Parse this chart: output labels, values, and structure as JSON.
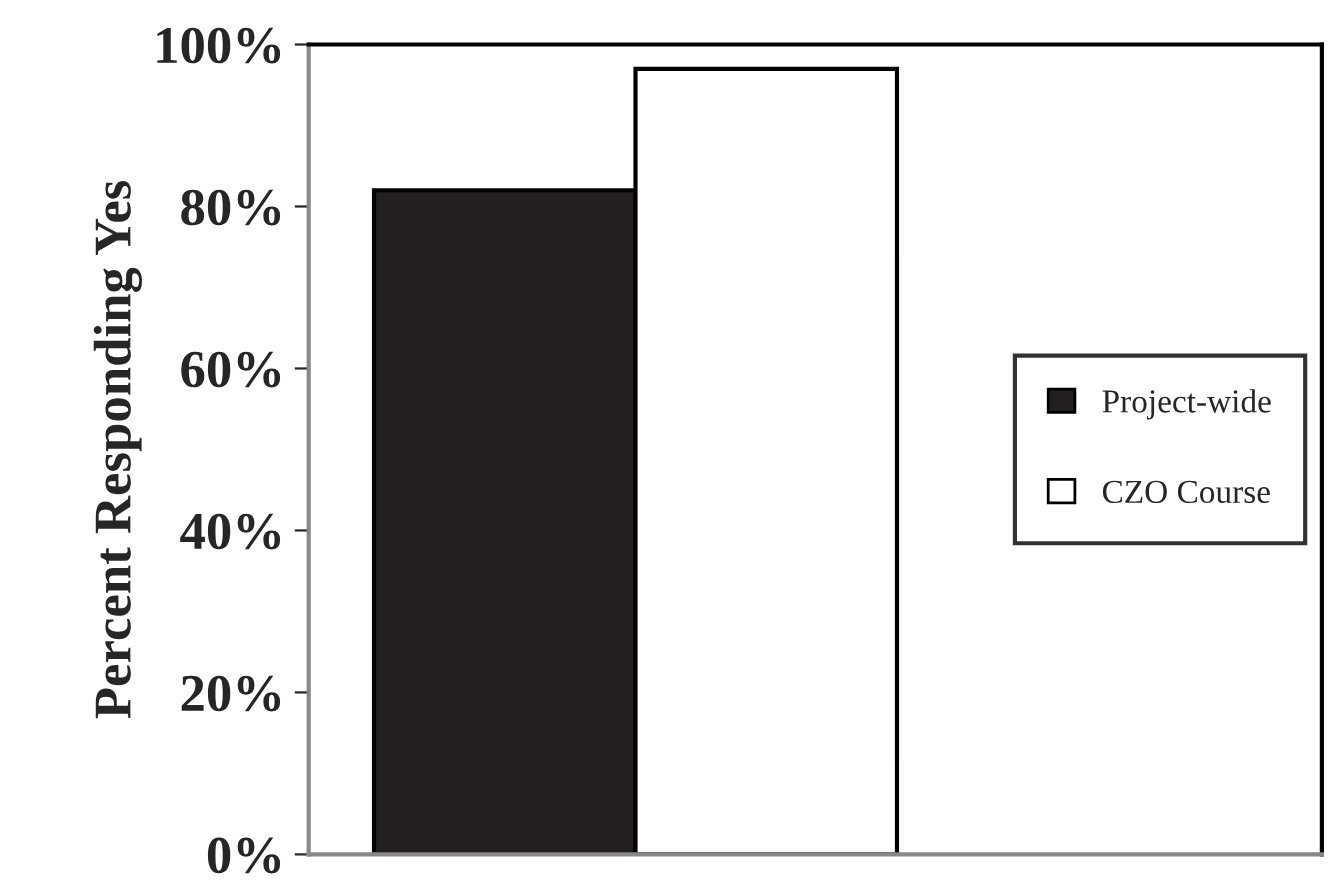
{
  "chart_data": {
    "type": "bar",
    "ylabel": "Percent Responding Yes",
    "categories": [
      null
    ],
    "series": [
      {
        "name": "Project-wide",
        "color": "#231f20",
        "values": [
          82
        ]
      },
      {
        "name": "CZO Course",
        "color": "#ffffff",
        "values": [
          97
        ]
      }
    ],
    "ylim": [
      0,
      100
    ],
    "yticks": [
      {
        "value": 0,
        "label": "0%"
      },
      {
        "value": 20,
        "label": "20%"
      },
      {
        "value": 40,
        "label": "40%"
      },
      {
        "value": 60,
        "label": "60%"
      },
      {
        "value": 80,
        "label": "80%"
      },
      {
        "value": 100,
        "label": "100%"
      }
    ],
    "grid": false,
    "legend": "right"
  }
}
